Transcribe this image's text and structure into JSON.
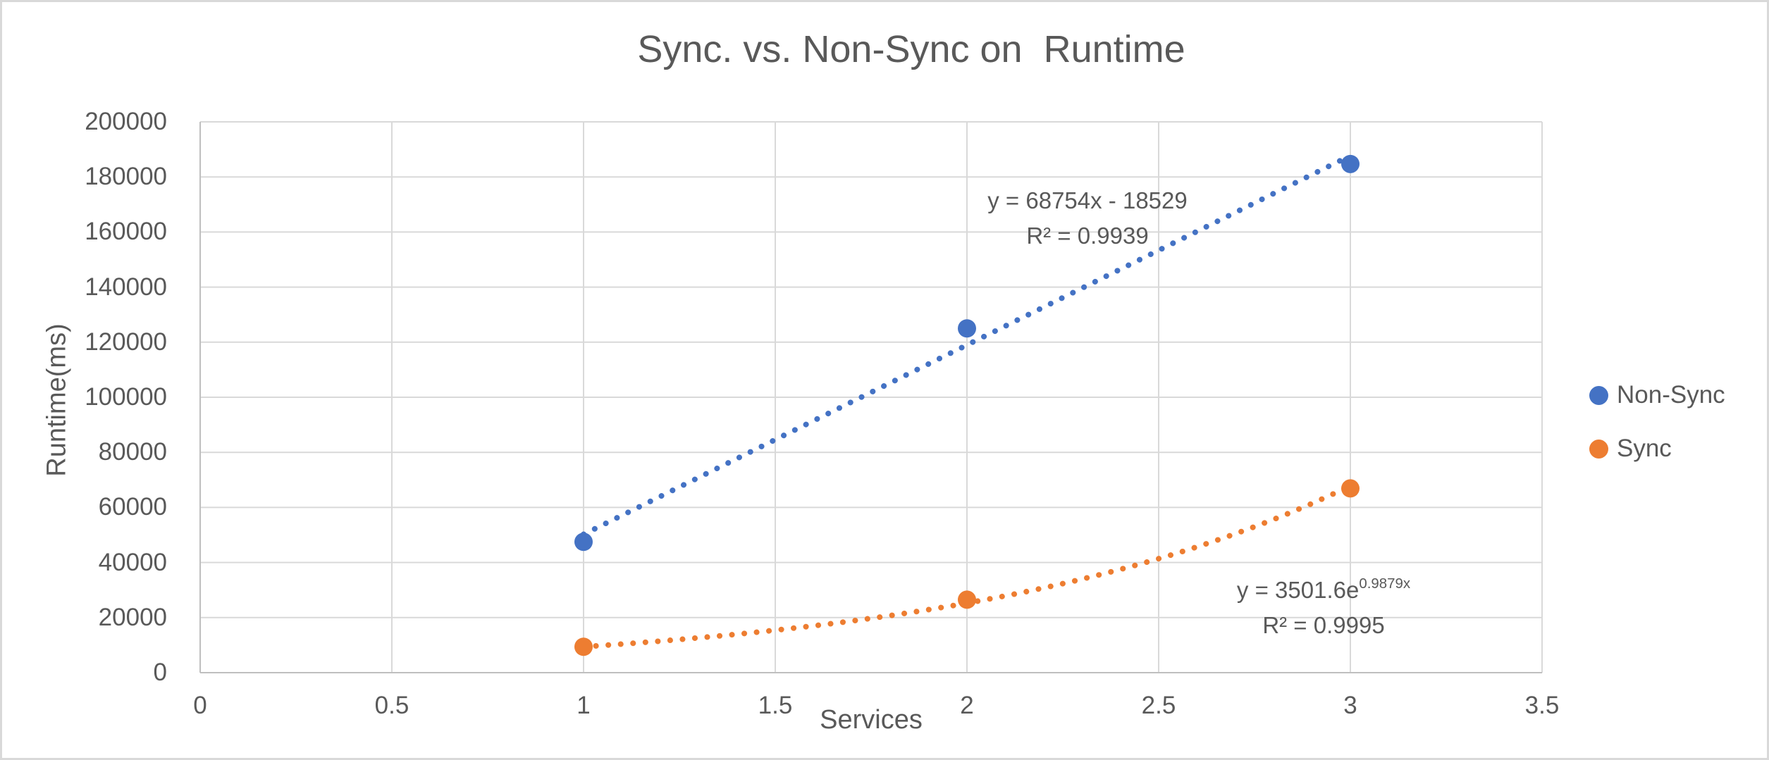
{
  "chart_data": {
    "type": "scatter",
    "title": "Sync. vs. Non-Sync on  Runtime",
    "xlabel": "Services",
    "ylabel": "Runtime(ms)",
    "xlim": [
      0,
      3.5
    ],
    "ylim": [
      0,
      200000
    ],
    "x_ticks": [
      0,
      0.5,
      1,
      1.5,
      2,
      2.5,
      3,
      3.5
    ],
    "x_tick_labels": [
      "0",
      "0.5",
      "1",
      "1.5",
      "2",
      "2.5",
      "3",
      "3.5"
    ],
    "y_ticks": [
      0,
      20000,
      40000,
      60000,
      80000,
      100000,
      120000,
      140000,
      160000,
      180000,
      200000
    ],
    "y_tick_labels": [
      "0",
      "20000",
      "40000",
      "60000",
      "80000",
      "100000",
      "120000",
      "140000",
      "160000",
      "180000",
      "200000"
    ],
    "grid": true,
    "legend_position": "right",
    "gridline_color": "#d9d9d9",
    "axis_color": "#bfbfbf",
    "text_color": "#595959",
    "series": [
      {
        "name": "Non-Sync",
        "color": "#4472C4",
        "marker": "circle",
        "x": [
          1,
          2,
          3
        ],
        "y": [
          47500,
          125000,
          184700
        ],
        "trendline": {
          "type": "linear",
          "style": "dotted",
          "slope": 68754,
          "intercept": -18529,
          "x_range": [
            1,
            3
          ],
          "equation_base": "y = 68754x - 18529",
          "equation_sup": "",
          "r_squared": "R² = 0.9939"
        }
      },
      {
        "name": "Sync",
        "color": "#ED7D31",
        "marker": "circle",
        "x": [
          1,
          2,
          3
        ],
        "y": [
          9400,
          26500,
          66900
        ],
        "trendline": {
          "type": "exponential",
          "style": "dotted",
          "a": 3501.6,
          "b": 0.9879,
          "x_range": [
            1,
            3
          ],
          "equation_base": "y = 3501.6e",
          "equation_sup": "0.9879x",
          "r_squared": "R² = 0.9995"
        }
      }
    ]
  }
}
